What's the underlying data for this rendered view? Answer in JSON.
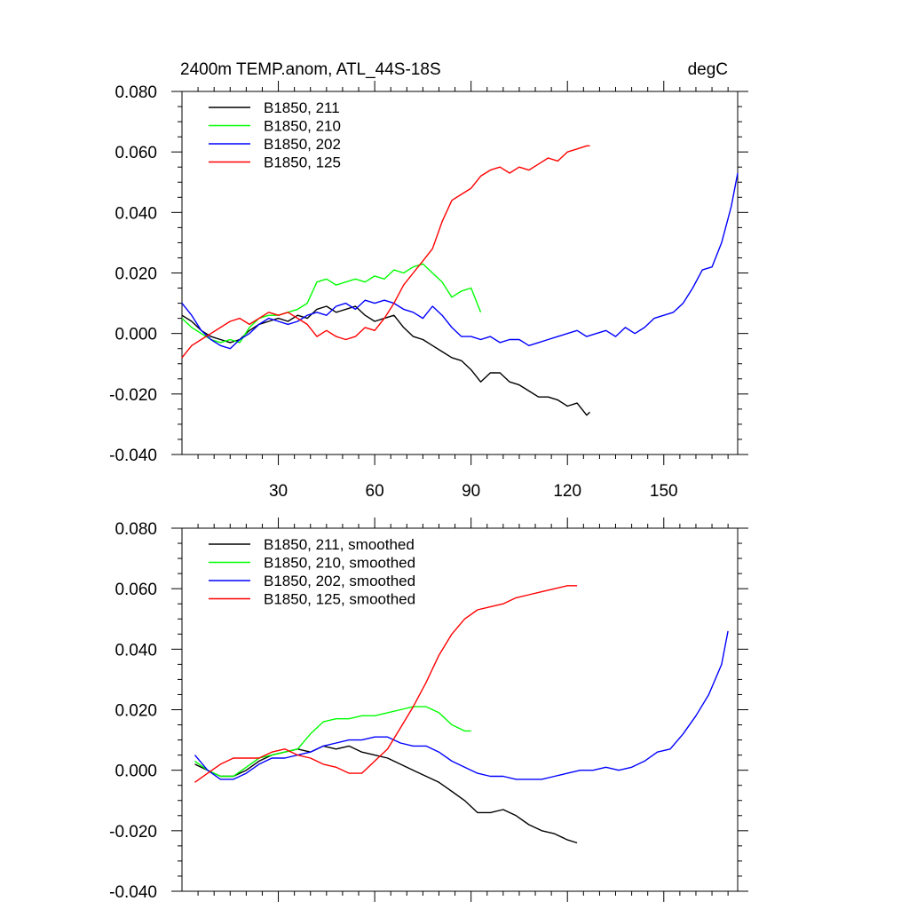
{
  "chart_data": [
    {
      "type": "line",
      "title": "2400m TEMP.anom, ATL_44S-18S",
      "units": "degC",
      "xlim": [
        0,
        173
      ],
      "ylim": [
        -0.04,
        0.08
      ],
      "yticks": [
        "0.080",
        "0.060",
        "0.040",
        "0.020",
        "0.000",
        "-0.020",
        "-0.040"
      ],
      "xticks": [
        "30",
        "60",
        "90",
        "120",
        "150"
      ],
      "series": [
        {
          "name": "B1850, 211",
          "color": "#000000",
          "x": [
            0,
            3,
            6,
            9,
            12,
            15,
            18,
            21,
            24,
            27,
            30,
            33,
            36,
            39,
            42,
            45,
            48,
            51,
            54,
            57,
            60,
            63,
            66,
            69,
            72,
            75,
            78,
            81,
            84,
            87,
            90,
            93,
            96,
            99,
            102,
            105,
            108,
            111,
            114,
            117,
            120,
            123,
            126,
            127
          ],
          "y": [
            0.006,
            0.004,
            0.001,
            -0.001,
            -0.002,
            -0.003,
            -0.002,
            0.001,
            0.003,
            0.004,
            0.005,
            0.004,
            0.006,
            0.005,
            0.008,
            0.009,
            0.007,
            0.008,
            0.009,
            0.006,
            0.004,
            0.005,
            0.006,
            0.002,
            -0.001,
            -0.002,
            -0.004,
            -0.006,
            -0.008,
            -0.009,
            -0.012,
            -0.016,
            -0.013,
            -0.013,
            -0.016,
            -0.017,
            -0.019,
            -0.021,
            -0.021,
            -0.022,
            -0.024,
            -0.023,
            -0.027,
            -0.026
          ]
        },
        {
          "name": "B1850, 210",
          "color": "#00ff00",
          "x": [
            0,
            3,
            6,
            9,
            12,
            15,
            18,
            21,
            24,
            27,
            30,
            33,
            36,
            39,
            42,
            45,
            48,
            51,
            54,
            57,
            60,
            63,
            66,
            69,
            72,
            75,
            78,
            81,
            84,
            87,
            90,
            93
          ],
          "y": [
            0.005,
            0.002,
            0.0,
            -0.002,
            -0.003,
            -0.002,
            -0.003,
            0.002,
            0.005,
            0.006,
            0.006,
            0.007,
            0.008,
            0.01,
            0.017,
            0.018,
            0.016,
            0.017,
            0.018,
            0.017,
            0.019,
            0.018,
            0.021,
            0.02,
            0.022,
            0.023,
            0.02,
            0.017,
            0.012,
            0.014,
            0.015,
            0.007
          ]
        },
        {
          "name": "B1850, 202",
          "color": "#0000ff",
          "x": [
            0,
            3,
            6,
            9,
            12,
            15,
            18,
            21,
            24,
            27,
            30,
            33,
            36,
            39,
            42,
            45,
            48,
            51,
            54,
            57,
            60,
            63,
            66,
            69,
            72,
            75,
            78,
            81,
            84,
            87,
            90,
            93,
            96,
            99,
            102,
            105,
            108,
            111,
            114,
            117,
            120,
            123,
            126,
            129,
            132,
            135,
            138,
            141,
            144,
            147,
            150,
            153,
            156,
            159,
            162,
            165,
            168,
            171,
            173
          ],
          "y": [
            0.01,
            0.006,
            0.001,
            -0.002,
            -0.004,
            -0.005,
            -0.002,
            0.0,
            0.003,
            0.005,
            0.004,
            0.003,
            0.004,
            0.006,
            0.007,
            0.006,
            0.009,
            0.01,
            0.008,
            0.011,
            0.01,
            0.011,
            0.01,
            0.008,
            0.007,
            0.005,
            0.009,
            0.006,
            0.002,
            -0.001,
            -0.001,
            -0.002,
            -0.001,
            -0.003,
            -0.002,
            -0.002,
            -0.004,
            -0.003,
            -0.002,
            -0.001,
            0.0,
            0.001,
            -0.001,
            0.0,
            0.001,
            -0.001,
            0.002,
            0.0,
            0.002,
            0.005,
            0.006,
            0.007,
            0.01,
            0.015,
            0.021,
            0.022,
            0.03,
            0.042,
            0.053
          ]
        },
        {
          "name": "B1850, 125",
          "color": "#ff0000",
          "x": [
            0,
            3,
            6,
            9,
            12,
            15,
            18,
            21,
            24,
            27,
            30,
            33,
            36,
            39,
            42,
            45,
            48,
            51,
            54,
            57,
            60,
            63,
            66,
            69,
            72,
            75,
            78,
            81,
            84,
            87,
            90,
            93,
            96,
            99,
            102,
            105,
            108,
            111,
            114,
            117,
            120,
            123,
            126,
            127
          ],
          "y": [
            -0.008,
            -0.004,
            -0.002,
            0.0,
            0.002,
            0.004,
            0.005,
            0.003,
            0.005,
            0.007,
            0.006,
            0.007,
            0.005,
            0.003,
            -0.001,
            0.001,
            -0.001,
            -0.002,
            -0.001,
            0.002,
            0.001,
            0.005,
            0.01,
            0.016,
            0.02,
            0.024,
            0.028,
            0.037,
            0.044,
            0.046,
            0.048,
            0.052,
            0.054,
            0.055,
            0.053,
            0.055,
            0.054,
            0.056,
            0.058,
            0.057,
            0.06,
            0.061,
            0.062,
            0.062
          ]
        }
      ]
    },
    {
      "type": "line",
      "title": "",
      "xlim": [
        0,
        173
      ],
      "ylim": [
        -0.04,
        0.08
      ],
      "yticks": [
        "0.080",
        "0.060",
        "0.040",
        "0.020",
        "0.000",
        "-0.020",
        "-0.040"
      ],
      "series": [
        {
          "name": "B1850, 211, smoothed",
          "color": "#000000",
          "x": [
            4,
            8,
            12,
            16,
            20,
            24,
            28,
            32,
            36,
            40,
            44,
            48,
            52,
            56,
            60,
            64,
            68,
            72,
            76,
            80,
            84,
            88,
            92,
            96,
            100,
            104,
            108,
            112,
            116,
            120,
            123
          ],
          "y": [
            0.002,
            0.0,
            -0.002,
            -0.002,
            0.0,
            0.003,
            0.005,
            0.006,
            0.007,
            0.006,
            0.008,
            0.007,
            0.008,
            0.006,
            0.005,
            0.004,
            0.002,
            0.0,
            -0.002,
            -0.004,
            -0.007,
            -0.01,
            -0.014,
            -0.014,
            -0.013,
            -0.015,
            -0.018,
            -0.02,
            -0.021,
            -0.023,
            -0.024
          ]
        },
        {
          "name": "B1850, 210, smoothed",
          "color": "#00ff00",
          "x": [
            4,
            8,
            12,
            16,
            20,
            24,
            28,
            32,
            36,
            40,
            44,
            48,
            52,
            56,
            60,
            64,
            68,
            72,
            76,
            80,
            84,
            88,
            90
          ],
          "y": [
            0.003,
            0.0,
            -0.002,
            -0.002,
            0.001,
            0.004,
            0.005,
            0.006,
            0.007,
            0.012,
            0.016,
            0.017,
            0.017,
            0.018,
            0.018,
            0.019,
            0.02,
            0.021,
            0.021,
            0.019,
            0.015,
            0.013,
            0.013
          ]
        },
        {
          "name": "B1850, 202, smoothed",
          "color": "#0000ff",
          "x": [
            4,
            8,
            12,
            16,
            20,
            24,
            28,
            32,
            36,
            40,
            44,
            48,
            52,
            56,
            60,
            64,
            68,
            72,
            76,
            80,
            84,
            88,
            92,
            96,
            100,
            104,
            108,
            112,
            116,
            120,
            124,
            128,
            132,
            136,
            140,
            144,
            148,
            152,
            156,
            160,
            164,
            168,
            170
          ],
          "y": [
            0.005,
            0.0,
            -0.003,
            -0.003,
            -0.001,
            0.002,
            0.004,
            0.004,
            0.005,
            0.006,
            0.008,
            0.009,
            0.01,
            0.01,
            0.011,
            0.011,
            0.009,
            0.008,
            0.008,
            0.006,
            0.003,
            0.001,
            -0.001,
            -0.002,
            -0.002,
            -0.003,
            -0.003,
            -0.003,
            -0.002,
            -0.001,
            0.0,
            0.0,
            0.001,
            0.0,
            0.001,
            0.003,
            0.006,
            0.007,
            0.012,
            0.018,
            0.025,
            0.035,
            0.046
          ]
        },
        {
          "name": "B1850, 125, smoothed",
          "color": "#ff0000",
          "x": [
            4,
            8,
            12,
            16,
            20,
            24,
            28,
            32,
            36,
            40,
            44,
            48,
            52,
            56,
            60,
            64,
            68,
            72,
            76,
            80,
            84,
            88,
            92,
            96,
            100,
            104,
            108,
            112,
            116,
            120,
            123
          ],
          "y": [
            -0.004,
            -0.001,
            0.002,
            0.004,
            0.004,
            0.004,
            0.006,
            0.007,
            0.005,
            0.004,
            0.002,
            0.001,
            -0.001,
            -0.001,
            0.003,
            0.007,
            0.014,
            0.021,
            0.029,
            0.038,
            0.045,
            0.05,
            0.053,
            0.054,
            0.055,
            0.057,
            0.058,
            0.059,
            0.06,
            0.061,
            0.061
          ]
        }
      ]
    }
  ]
}
